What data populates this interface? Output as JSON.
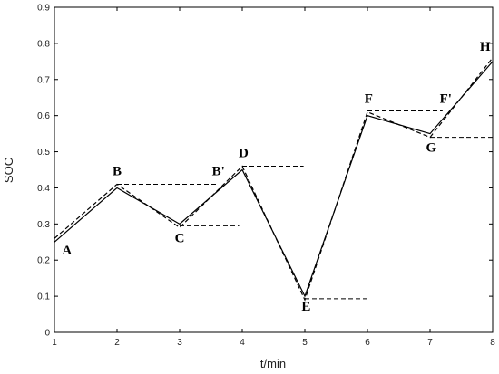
{
  "chart_data": {
    "type": "line",
    "title": "",
    "xlabel": "t/min",
    "ylabel": "SOC",
    "xlim": [
      1,
      8
    ],
    "ylim": [
      0,
      0.9
    ],
    "grid": false,
    "x_ticks": [
      "1",
      "2",
      "3",
      "4",
      "5",
      "6",
      "7",
      "8"
    ],
    "y_ticks": [
      "0",
      "0.1",
      "0.2",
      "0.3",
      "0.4",
      "0.5",
      "0.6",
      "0.7",
      "0.8",
      "0.9"
    ],
    "series": [
      {
        "style": "solid",
        "x": [
          1,
          2,
          3,
          4,
          5,
          6,
          7,
          8
        ],
        "y": [
          0.25,
          0.4,
          0.3,
          0.45,
          0.1,
          0.6,
          0.55,
          0.75
        ]
      },
      {
        "style": "dashed",
        "x": [
          1,
          2,
          3,
          4,
          5,
          6,
          7,
          8
        ],
        "y": [
          0.26,
          0.41,
          0.29,
          0.46,
          0.09,
          0.61,
          0.54,
          0.76
        ]
      }
    ],
    "reference_lines": [
      {
        "x_start": 2,
        "x_end": 3.6,
        "y": 0.41
      },
      {
        "x_start": 3,
        "x_end": 3.95,
        "y": 0.295
      },
      {
        "x_start": 4,
        "x_end": 4.98,
        "y": 0.46
      },
      {
        "x_start": 5,
        "x_end": 6,
        "y": 0.093
      },
      {
        "x_start": 6,
        "x_end": 7.2,
        "y": 0.613
      },
      {
        "x_start": 7,
        "x_end": 8,
        "y": 0.54
      }
    ],
    "point_labels": [
      {
        "text": "A",
        "x": 1.2,
        "y": 0.215
      },
      {
        "text": "B",
        "x": 2.0,
        "y": 0.435
      },
      {
        "text": "C",
        "x": 3.0,
        "y": 0.25
      },
      {
        "text": "B'",
        "x": 3.62,
        "y": 0.435
      },
      {
        "text": "D",
        "x": 4.02,
        "y": 0.485
      },
      {
        "text": "E",
        "x": 5.02,
        "y": 0.06
      },
      {
        "text": "F",
        "x": 6.02,
        "y": 0.635
      },
      {
        "text": "F'",
        "x": 7.25,
        "y": 0.635
      },
      {
        "text": "G",
        "x": 7.02,
        "y": 0.5
      },
      {
        "text": "H",
        "x": 7.88,
        "y": 0.78
      }
    ]
  }
}
